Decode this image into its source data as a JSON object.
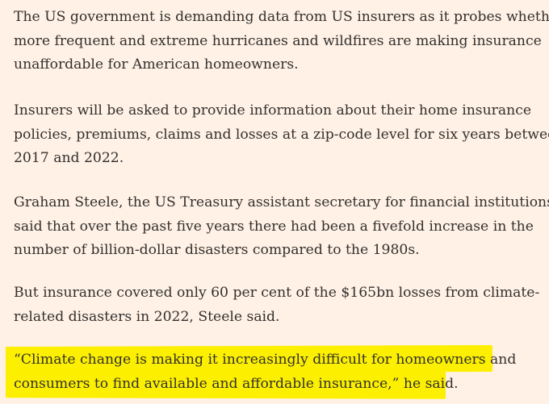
{
  "paragraphs": [
    {
      "lines": [
        "The US government is demanding data from US insurers as it probes whether",
        "more frequent and extreme hurricanes and wildfires are making insurance",
        "unaffordable for American homeowners."
      ]
    },
    {
      "lines": [
        "Insurers will be asked to provide information about their home insurance",
        "policies, premiums, claims and losses at a zip-code level for six years between",
        "2017 and 2022."
      ]
    },
    {
      "lines": [
        "Graham Steele, the US Treasury assistant secretary for financial institutions,",
        "said that over the past five years there had been a fivefold increase in the",
        "number of billion-dollar disasters compared to the 1980s."
      ]
    },
    {
      "lines": [
        "But insurance covered only 60 per cent of the $165bn losses from climate-",
        "related disasters in 2022, Steele said."
      ]
    }
  ],
  "quote": {
    "lines": [
      "“Climate change is making it increasingly difficult for homeowners and",
      "consumers to find available and affordable insurance,” he said."
    ]
  },
  "colors": {
    "background": "#fff1e5",
    "text": "#33302e",
    "highlight": "#fcf000"
  }
}
